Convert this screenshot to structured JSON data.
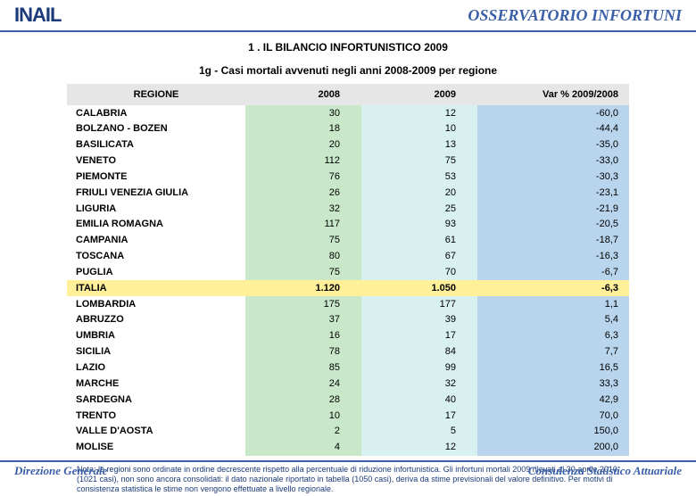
{
  "header": {
    "logo_text": "INAIL",
    "right_text": "OSSERVATORIO INFORTUNI"
  },
  "title_line1": "1 . IL BILANCIO INFORTUNISTICO 2009",
  "title_line2": "1g - Casi mortali avvenuti negli anni 2008-2009 per regione",
  "table": {
    "type": "table",
    "columns": [
      "REGIONE",
      "2008",
      "2009",
      "Var % 2009/2008"
    ],
    "col_colors": {
      "c2_bg": "#c9e8c9",
      "c3_bg": "#d9f0f0",
      "c4_bg": "#b9d5ee",
      "header_bg": "#e6e6e6",
      "highlight_bg": "#fff099"
    },
    "rows": [
      {
        "region": "CALABRIA",
        "v2008": "30",
        "v2009": "12",
        "var": "-60,0",
        "hl": false
      },
      {
        "region": "BOLZANO - BOZEN",
        "v2008": "18",
        "v2009": "10",
        "var": "-44,4",
        "hl": false
      },
      {
        "region": "BASILICATA",
        "v2008": "20",
        "v2009": "13",
        "var": "-35,0",
        "hl": false
      },
      {
        "region": "VENETO",
        "v2008": "112",
        "v2009": "75",
        "var": "-33,0",
        "hl": false
      },
      {
        "region": "PIEMONTE",
        "v2008": "76",
        "v2009": "53",
        "var": "-30,3",
        "hl": false
      },
      {
        "region": "FRIULI VENEZIA GIULIA",
        "v2008": "26",
        "v2009": "20",
        "var": "-23,1",
        "hl": false
      },
      {
        "region": "LIGURIA",
        "v2008": "32",
        "v2009": "25",
        "var": "-21,9",
        "hl": false
      },
      {
        "region": "EMILIA ROMAGNA",
        "v2008": "117",
        "v2009": "93",
        "var": "-20,5",
        "hl": false
      },
      {
        "region": "CAMPANIA",
        "v2008": "75",
        "v2009": "61",
        "var": "-18,7",
        "hl": false
      },
      {
        "region": "TOSCANA",
        "v2008": "80",
        "v2009": "67",
        "var": "-16,3",
        "hl": false
      },
      {
        "region": "PUGLIA",
        "v2008": "75",
        "v2009": "70",
        "var": "-6,7",
        "hl": false
      },
      {
        "region": "ITALIA",
        "v2008": "1.120",
        "v2009": "1.050",
        "var": "-6,3",
        "hl": true
      },
      {
        "region": "LOMBARDIA",
        "v2008": "175",
        "v2009": "177",
        "var": "1,1",
        "hl": false
      },
      {
        "region": "ABRUZZO",
        "v2008": "37",
        "v2009": "39",
        "var": "5,4",
        "hl": false
      },
      {
        "region": "UMBRIA",
        "v2008": "16",
        "v2009": "17",
        "var": "6,3",
        "hl": false
      },
      {
        "region": "SICILIA",
        "v2008": "78",
        "v2009": "84",
        "var": "7,7",
        "hl": false
      },
      {
        "region": "LAZIO",
        "v2008": "85",
        "v2009": "99",
        "var": "16,5",
        "hl": false
      },
      {
        "region": "MARCHE",
        "v2008": "24",
        "v2009": "32",
        "var": "33,3",
        "hl": false
      },
      {
        "region": "SARDEGNA",
        "v2008": "28",
        "v2009": "40",
        "var": "42,9",
        "hl": false
      },
      {
        "region": "TRENTO",
        "v2008": "10",
        "v2009": "17",
        "var": "70,0",
        "hl": false
      },
      {
        "region": "VALLE D'AOSTA",
        "v2008": "2",
        "v2009": "5",
        "var": "150,0",
        "hl": false
      },
      {
        "region": "MOLISE",
        "v2008": "4",
        "v2009": "12",
        "var": "200,0",
        "hl": false
      }
    ]
  },
  "note": "Nota: le regioni sono ordinate in ordine decrescente rispetto alla percentuale di riduzione infortunistica. Gli infortuni mortali 2009 rilevati al 30 aprile 2010 (1021 casi), non sono ancora consolidati: il dato nazionale riportato in tabella (1050 casi), deriva da stime previsionali del valore definitivo. Per motivi di consistenza statistica le stime non vengono effettuate a livello regionale.",
  "footer": {
    "left": "Direzione Generale",
    "right": "Consulenza Statistico Attuariale"
  },
  "style": {
    "rule_color": "#3a5fa8",
    "text_color": "#000000",
    "brand_color": "#1a3a7a",
    "font_size_body": 11,
    "font_size_title": 12,
    "font_size_note": 9
  }
}
